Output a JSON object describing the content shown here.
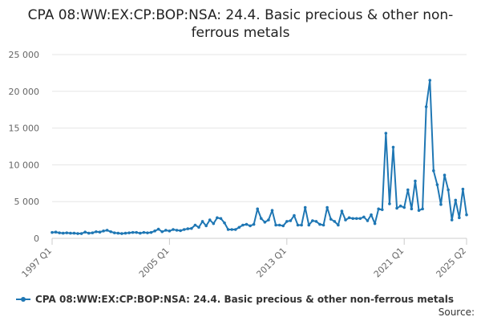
{
  "chart_data": {
    "type": "line",
    "title": "CPA 08:WW:EX:CP:BOP:NSA: 24.4. Basic precious & other non-ferrous metals",
    "xlabel": "",
    "ylabel": "",
    "x_start": "1997 Q1",
    "x_end": "2025 Q2",
    "x_ticks": [
      "1997 Q1",
      "2005 Q1",
      "2013 Q1",
      "2021 Q1",
      "2025 Q2"
    ],
    "y_ticks": [
      "0",
      "5 000",
      "10 000",
      "15 000",
      "20 000",
      "25 000"
    ],
    "ylim": [
      0,
      25000
    ],
    "grid": true,
    "legend_position": "bottom-left",
    "series": [
      {
        "name": "CPA 08:WW:EX:CP:BOP:NSA: 24.4. Basic precious & other non-ferrous metals",
        "color": "#1f77b4",
        "values": [
          800,
          850,
          750,
          700,
          750,
          700,
          700,
          650,
          650,
          850,
          700,
          750,
          900,
          850,
          1000,
          1100,
          900,
          750,
          700,
          650,
          700,
          750,
          800,
          800,
          700,
          800,
          750,
          800,
          1000,
          1250,
          900,
          1100,
          1000,
          1200,
          1100,
          1050,
          1200,
          1300,
          1350,
          1800,
          1500,
          2300,
          1700,
          2500,
          2000,
          2800,
          2700,
          2100,
          1200,
          1200,
          1200,
          1500,
          1800,
          1900,
          1700,
          1900,
          4000,
          2700,
          2200,
          2500,
          3800,
          1800,
          1800,
          1700,
          2300,
          2400,
          3100,
          1800,
          1800,
          4200,
          1800,
          2400,
          2300,
          1900,
          1800,
          4200,
          2600,
          2300,
          1800,
          3700,
          2500,
          2800,
          2700,
          2700,
          2700,
          2900,
          2400,
          3200,
          2000,
          4000,
          3900,
          14300,
          4700,
          12400,
          4100,
          4400,
          4200,
          6600,
          4000,
          7800,
          3800,
          4000,
          17900,
          21500,
          9200,
          7300,
          4600,
          8600,
          6600,
          2500,
          5200,
          2800,
          6700,
          3200
        ]
      }
    ]
  },
  "source_label": "Source:"
}
